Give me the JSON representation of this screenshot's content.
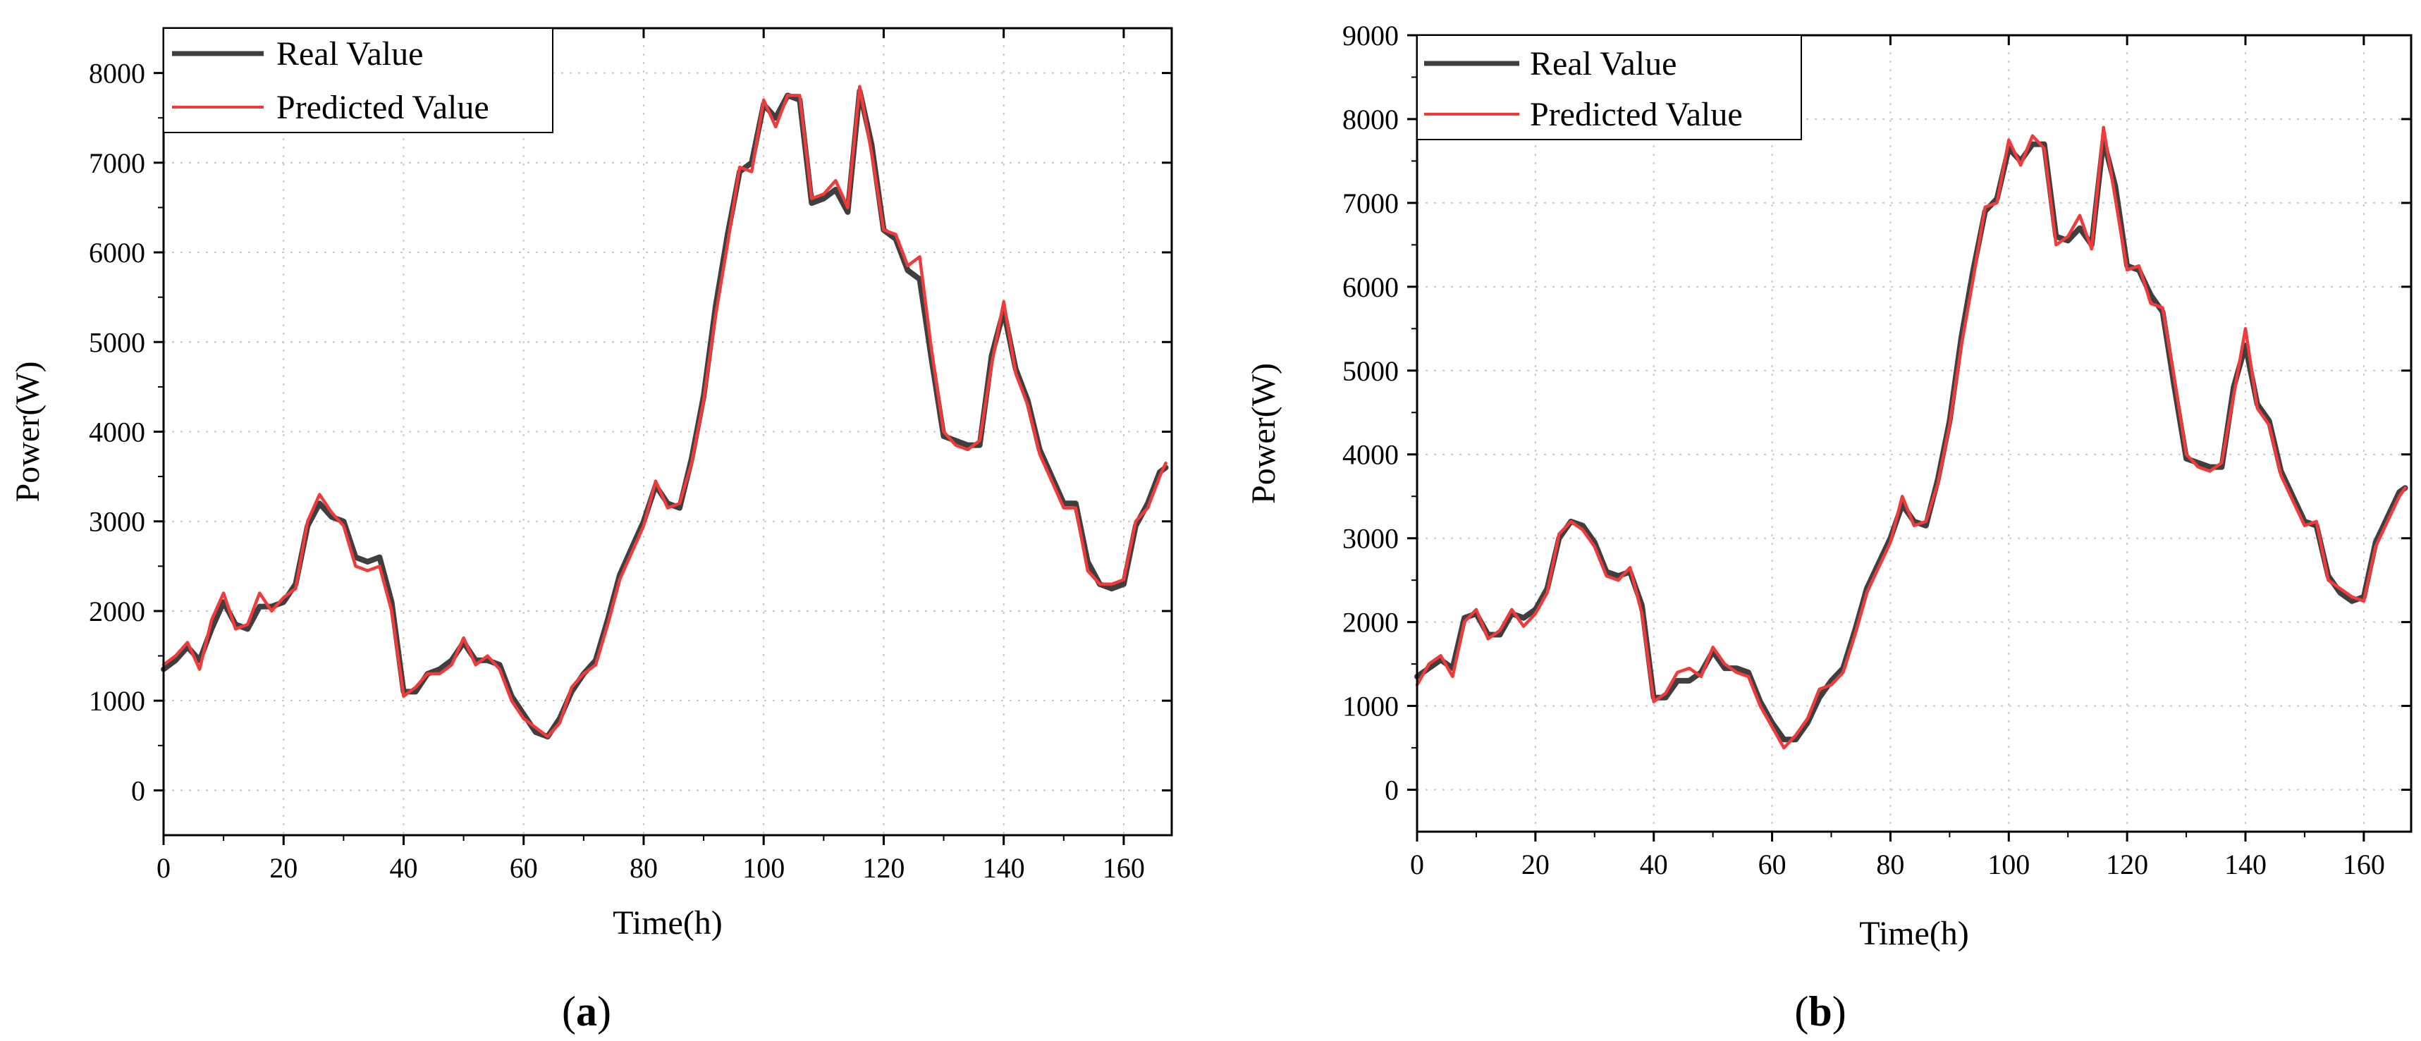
{
  "colors": {
    "real": "#3f3f3f",
    "predicted": "#ef3b3b",
    "grid": "#c8c8c8",
    "axis": "#000000"
  },
  "chart_data": [
    {
      "type": "line",
      "panel_label": "a",
      "xlabel": "Time(h)",
      "ylabel": "Power(W)",
      "xlim": [
        0,
        168
      ],
      "ylim": [
        -500,
        8500
      ],
      "xticks": [
        0,
        20,
        40,
        60,
        80,
        100,
        120,
        140,
        160
      ],
      "yticks": [
        0,
        1000,
        2000,
        3000,
        4000,
        5000,
        6000,
        7000,
        8000
      ],
      "grid": true,
      "legend_position": "top-left",
      "series": [
        {
          "name": "Real Value",
          "color": "#3f3f3f",
          "x": [
            0,
            2,
            4,
            6,
            8,
            10,
            12,
            14,
            16,
            18,
            20,
            22,
            24,
            26,
            28,
            30,
            32,
            34,
            36,
            38,
            40,
            42,
            44,
            46,
            48,
            50,
            52,
            54,
            56,
            58,
            60,
            62,
            64,
            66,
            68,
            70,
            72,
            74,
            76,
            78,
            80,
            82,
            84,
            86,
            88,
            90,
            92,
            94,
            96,
            98,
            100,
            102,
            104,
            106,
            108,
            110,
            112,
            114,
            116,
            118,
            120,
            122,
            124,
            126,
            128,
            130,
            132,
            134,
            136,
            138,
            140,
            142,
            144,
            146,
            148,
            150,
            152,
            154,
            156,
            158,
            160,
            162,
            164,
            166,
            167
          ],
          "values": [
            1350,
            1450,
            1600,
            1450,
            1800,
            2100,
            1850,
            1800,
            2050,
            2050,
            2100,
            2300,
            2950,
            3200,
            3050,
            3000,
            2600,
            2550,
            2600,
            2100,
            1100,
            1100,
            1300,
            1350,
            1450,
            1650,
            1450,
            1450,
            1400,
            1050,
            850,
            650,
            600,
            800,
            1100,
            1300,
            1450,
            1900,
            2400,
            2700,
            3000,
            3400,
            3200,
            3150,
            3700,
            4400,
            5400,
            6200,
            6900,
            7000,
            7650,
            7500,
            7750,
            7700,
            6550,
            6600,
            6700,
            6450,
            7800,
            7200,
            6250,
            6150,
            5800,
            5700,
            4800,
            3950,
            3900,
            3850,
            3850,
            4850,
            5350,
            4700,
            4350,
            3800,
            3500,
            3200,
            3200,
            2550,
            2300,
            2250,
            2300,
            2950,
            3200,
            3550,
            3600
          ]
        },
        {
          "name": "Predicted Value",
          "color": "#ef3b3b",
          "x": [
            0,
            2,
            4,
            6,
            8,
            10,
            12,
            14,
            16,
            18,
            20,
            22,
            24,
            26,
            28,
            30,
            32,
            34,
            36,
            38,
            40,
            42,
            44,
            46,
            48,
            50,
            52,
            54,
            56,
            58,
            60,
            62,
            64,
            66,
            68,
            70,
            72,
            74,
            76,
            78,
            80,
            82,
            84,
            86,
            88,
            90,
            92,
            94,
            96,
            98,
            100,
            102,
            104,
            106,
            108,
            110,
            112,
            114,
            116,
            118,
            120,
            122,
            124,
            126,
            128,
            130,
            132,
            134,
            136,
            138,
            140,
            142,
            144,
            146,
            148,
            150,
            152,
            154,
            156,
            158,
            160,
            162,
            164,
            166,
            167
          ],
          "values": [
            1400,
            1500,
            1650,
            1350,
            1900,
            2200,
            1800,
            1850,
            2200,
            2000,
            2150,
            2250,
            3000,
            3300,
            3100,
            2950,
            2500,
            2450,
            2500,
            2000,
            1050,
            1150,
            1300,
            1300,
            1400,
            1700,
            1400,
            1500,
            1350,
            1000,
            800,
            700,
            600,
            750,
            1150,
            1300,
            1400,
            1850,
            2350,
            2650,
            2950,
            3450,
            3150,
            3200,
            3650,
            4350,
            5300,
            6100,
            6950,
            6900,
            7700,
            7400,
            7750,
            7750,
            6600,
            6650,
            6800,
            6500,
            7850,
            7100,
            6250,
            6200,
            5850,
            5950,
            4900,
            4000,
            3850,
            3800,
            3900,
            4750,
            5450,
            4650,
            4300,
            3750,
            3450,
            3150,
            3150,
            2450,
            2300,
            2300,
            2350,
            3000,
            3150,
            3500,
            3650
          ]
        }
      ]
    },
    {
      "type": "line",
      "panel_label": "b",
      "xlabel": "Time(h)",
      "ylabel": "Power(W)",
      "xlim": [
        0,
        168
      ],
      "ylim": [
        -500,
        9000
      ],
      "xticks": [
        0,
        20,
        40,
        60,
        80,
        100,
        120,
        140,
        160
      ],
      "yticks": [
        0,
        1000,
        2000,
        3000,
        4000,
        5000,
        6000,
        7000,
        8000,
        9000
      ],
      "grid": true,
      "legend_position": "top-left",
      "series": [
        {
          "name": "Real Value",
          "color": "#3f3f3f",
          "x": [
            0,
            2,
            4,
            6,
            8,
            10,
            12,
            14,
            16,
            18,
            20,
            22,
            24,
            26,
            28,
            30,
            32,
            34,
            36,
            38,
            40,
            42,
            44,
            46,
            48,
            50,
            52,
            54,
            56,
            58,
            60,
            62,
            64,
            66,
            68,
            70,
            72,
            74,
            76,
            78,
            80,
            82,
            84,
            86,
            88,
            90,
            92,
            94,
            96,
            98,
            100,
            102,
            104,
            106,
            108,
            110,
            112,
            114,
            116,
            118,
            120,
            122,
            124,
            126,
            128,
            130,
            132,
            134,
            136,
            138,
            140,
            142,
            144,
            146,
            148,
            150,
            152,
            154,
            156,
            158,
            160,
            162,
            164,
            166,
            167
          ],
          "values": [
            1350,
            1450,
            1550,
            1450,
            2050,
            2100,
            1850,
            1850,
            2100,
            2050,
            2150,
            2400,
            3000,
            3200,
            3150,
            2950,
            2600,
            2550,
            2600,
            2200,
            1100,
            1100,
            1300,
            1300,
            1400,
            1650,
            1450,
            1450,
            1400,
            1050,
            800,
            600,
            600,
            800,
            1100,
            1300,
            1450,
            1900,
            2400,
            2700,
            3000,
            3400,
            3200,
            3150,
            3700,
            4400,
            5400,
            6200,
            6900,
            7050,
            7650,
            7500,
            7700,
            7700,
            6600,
            6550,
            6700,
            6500,
            7750,
            7200,
            6250,
            6200,
            5900,
            5700,
            4800,
            3950,
            3900,
            3850,
            3850,
            4800,
            5300,
            4600,
            4400,
            3800,
            3500,
            3200,
            3150,
            2550,
            2350,
            2250,
            2300,
            2950,
            3250,
            3550,
            3600
          ]
        },
        {
          "name": "Predicted Value",
          "color": "#ef3b3b",
          "x": [
            0,
            2,
            4,
            6,
            8,
            10,
            12,
            14,
            16,
            18,
            20,
            22,
            24,
            26,
            28,
            30,
            32,
            34,
            36,
            38,
            40,
            42,
            44,
            46,
            48,
            50,
            52,
            54,
            56,
            58,
            60,
            62,
            64,
            66,
            68,
            70,
            72,
            74,
            76,
            78,
            80,
            82,
            84,
            86,
            88,
            90,
            92,
            94,
            96,
            98,
            100,
            102,
            104,
            106,
            108,
            110,
            112,
            114,
            116,
            118,
            120,
            122,
            124,
            126,
            128,
            130,
            132,
            134,
            136,
            138,
            140,
            142,
            144,
            146,
            148,
            150,
            152,
            154,
            156,
            158,
            160,
            162,
            164,
            166,
            167
          ],
          "values": [
            1250,
            1500,
            1600,
            1350,
            2000,
            2150,
            1800,
            1900,
            2150,
            1950,
            2100,
            2350,
            3050,
            3200,
            3100,
            2900,
            2550,
            2500,
            2650,
            2100,
            1050,
            1150,
            1400,
            1450,
            1350,
            1700,
            1500,
            1400,
            1350,
            1000,
            750,
            500,
            650,
            850,
            1200,
            1250,
            1400,
            1850,
            2350,
            2650,
            2950,
            3500,
            3150,
            3200,
            3650,
            4350,
            5300,
            6100,
            6950,
            7000,
            7750,
            7450,
            7800,
            7650,
            6500,
            6600,
            6850,
            6450,
            7900,
            7050,
            6200,
            6250,
            5800,
            5750,
            4900,
            4000,
            3850,
            3800,
            3900,
            4700,
            5500,
            4550,
            4350,
            3750,
            3450,
            3150,
            3200,
            2500,
            2400,
            2300,
            2250,
            2900,
            3200,
            3500,
            3600
          ]
        }
      ]
    }
  ]
}
